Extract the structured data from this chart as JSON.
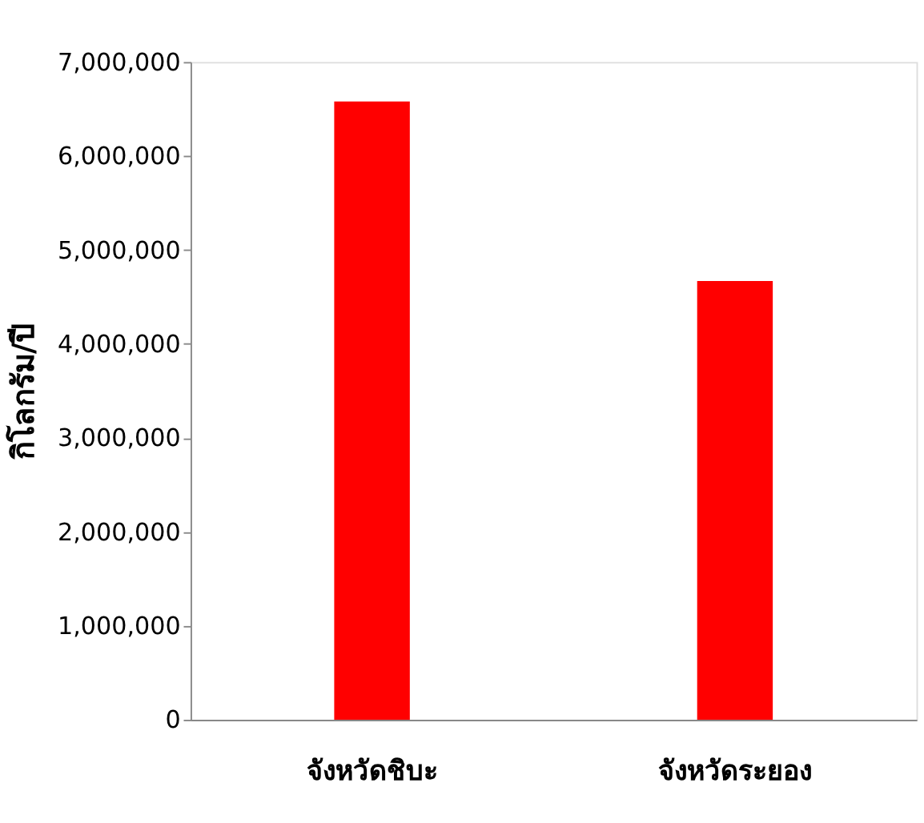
{
  "chart_data": {
    "type": "bar",
    "ylabel": "กิโลกรัม/ปี",
    "categories": [
      "จังหวัดชิบะ",
      "จังหวัดระยอง"
    ],
    "values": [
      6580000,
      4670000
    ],
    "color": "#ff0000",
    "ylim": [
      0,
      7000000
    ],
    "yticks": [
      0,
      {
        "value": 1000000,
        "label": "1,000,000"
      },
      {
        "value": 2000000,
        "label": "2,000,000"
      },
      {
        "value": 3000000,
        "label": "3,000,000"
      },
      {
        "value": 4000000,
        "label": "4,000,000"
      },
      {
        "value": 5000000,
        "label": "5,000,000"
      },
      {
        "value": 6000000,
        "label": "6,000,000"
      },
      {
        "value": 7000000,
        "label": "7,000,000"
      }
    ],
    "grid": false
  }
}
